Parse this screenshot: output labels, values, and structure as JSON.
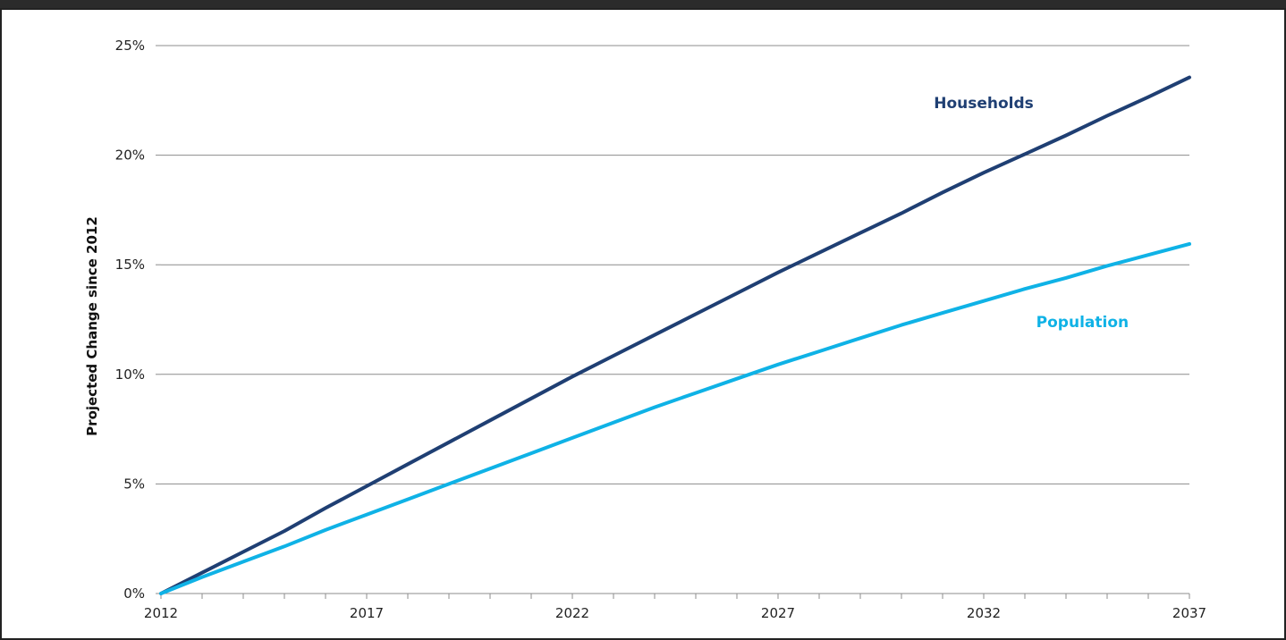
{
  "chart_data": {
    "type": "line",
    "title": "",
    "xlabel": "",
    "ylabel": "Projected Change since 2012",
    "xlim": [
      2012,
      2037
    ],
    "ylim": [
      0,
      25
    ],
    "x_ticks": [
      2012,
      2017,
      2022,
      2027,
      2032,
      2037
    ],
    "x_tick_labels": [
      "2012",
      "2017",
      "2022",
      "2027",
      "2032",
      "2037"
    ],
    "y_ticks": [
      0,
      5,
      10,
      15,
      20,
      25
    ],
    "y_tick_labels": [
      "0%",
      "5%",
      "10%",
      "15%",
      "20%",
      "25%"
    ],
    "grid": "horizontal",
    "legend": "inline labels",
    "x": [
      2012,
      2013,
      2014,
      2015,
      2016,
      2017,
      2018,
      2019,
      2020,
      2021,
      2022,
      2023,
      2024,
      2025,
      2026,
      2027,
      2028,
      2029,
      2030,
      2031,
      2032,
      2033,
      2034,
      2035,
      2036,
      2037
    ],
    "series": [
      {
        "name": "Households",
        "color": "#1f3f73",
        "label_at": [
          2032,
          22.4
        ],
        "values": [
          0,
          0.95,
          1.9,
          2.85,
          3.9,
          4.9,
          5.9,
          6.9,
          7.9,
          8.9,
          9.9,
          10.85,
          11.8,
          12.75,
          13.7,
          14.65,
          15.55,
          16.45,
          17.35,
          18.3,
          19.2,
          20.05,
          20.9,
          21.8,
          22.65,
          23.55
        ]
      },
      {
        "name": "Population",
        "color": "#0fb2e6",
        "label_at": [
          2034.4,
          12.4
        ],
        "values": [
          0,
          0.75,
          1.45,
          2.15,
          2.9,
          3.6,
          4.3,
          5.0,
          5.7,
          6.4,
          7.1,
          7.8,
          8.5,
          9.15,
          9.8,
          10.45,
          11.05,
          11.65,
          12.25,
          12.8,
          13.35,
          13.9,
          14.4,
          14.95,
          15.45,
          15.95
        ]
      }
    ]
  }
}
